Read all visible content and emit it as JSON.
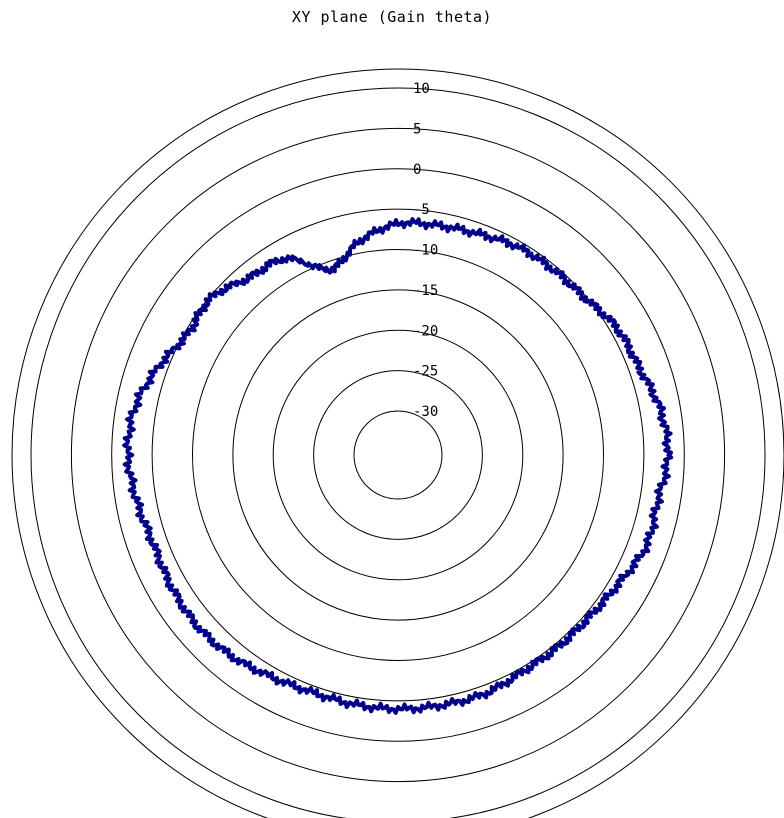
{
  "chart_data": {
    "type": "line",
    "subtype": "polar",
    "title": "XY plane (Gain theta)",
    "radial_axis": {
      "range": [
        -30,
        10
      ],
      "ticks": [
        10,
        5,
        0,
        -5,
        -10,
        -15,
        -20,
        -25,
        -30
      ],
      "tick_labels": [
        "10",
        "5",
        "0",
        "-5",
        "-10",
        "-15",
        "-20",
        "-25",
        "-30"
      ],
      "unit": ""
    },
    "angular_axis": {
      "range": [
        0,
        360
      ],
      "zero_direction": "right",
      "direction": "counterclockwise",
      "labels_shown": false
    },
    "grid": true,
    "legend": "none",
    "series": [
      {
        "color": "#00008b",
        "angle_deg": [
          0,
          10,
          20,
          30,
          40,
          50,
          60,
          70,
          80,
          90,
          100,
          110,
          120,
          130,
          140,
          150,
          160,
          170,
          180,
          190,
          200,
          210,
          220,
          230,
          240,
          250,
          260,
          270,
          280,
          290,
          300,
          310,
          320,
          330,
          340,
          350
        ],
        "gain_db": [
          -2.0,
          -2.5,
          -3.7,
          -4.1,
          -5.2,
          -5.5,
          -5.7,
          -6.3,
          -6.6,
          -6.8,
          -8.5,
          -11.0,
          -7.4,
          -6.8,
          -5.2,
          -5.4,
          -3.8,
          -2.3,
          -2.0,
          -2.6,
          -3.2,
          -3.0,
          -2.8,
          -3.1,
          -3.8,
          -4.2,
          -4.1,
          -4.0,
          -4.0,
          -4.0,
          -4.5,
          -4.5,
          -4.4,
          -3.8,
          -2.7,
          -2.8
        ]
      }
    ]
  }
}
